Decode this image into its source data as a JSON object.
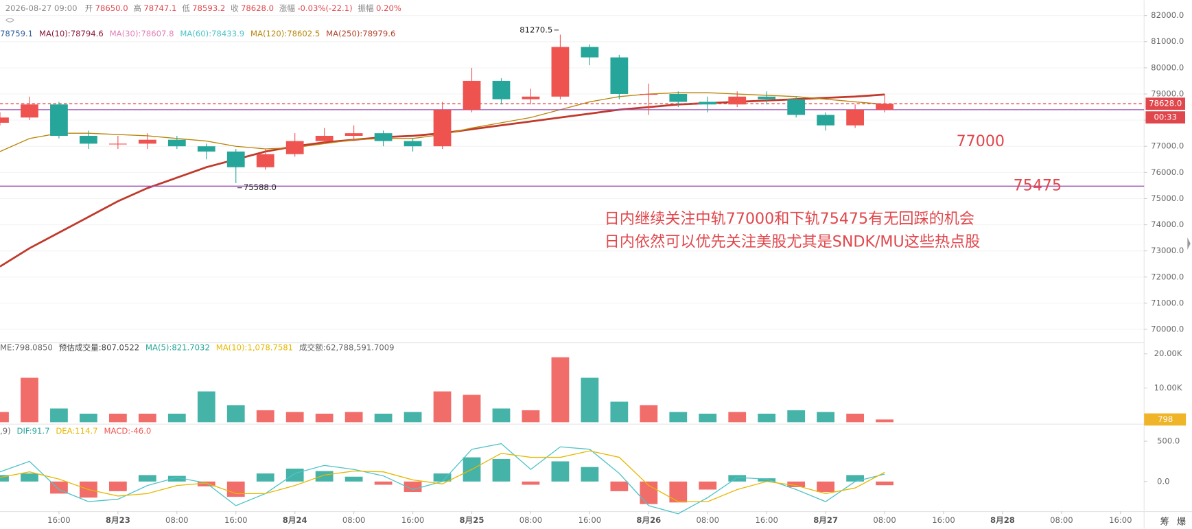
{
  "chart_data": {
    "type": "candlestick",
    "header": [
      {
        "label": "2026-08-27 09:00",
        "value": ""
      },
      {
        "label": "开",
        "value": "78650.0"
      },
      {
        "label": "高",
        "value": "78747.1"
      },
      {
        "label": "低",
        "value": "78593.2"
      },
      {
        "label": "收",
        "value": "78628.0"
      },
      {
        "label": "涨幅",
        "value": "-0.03%(-22.1)"
      },
      {
        "label": "振幅",
        "value": "0.20%"
      }
    ],
    "ma_legend": [
      {
        "text": "78759.1",
        "color": "#2f5f9e"
      },
      {
        "text": "MA(10):78794.6",
        "color": "#8b1a3a"
      },
      {
        "text": "MA(30):78607.8",
        "color": "#e27fb9"
      },
      {
        "text": "MA(60):78433.9",
        "color": "#4fc3c8"
      },
      {
        "text": "MA(120):78602.5",
        "color": "#b8860b"
      },
      {
        "text": "MA(250):78979.6",
        "color": "#b5452b"
      }
    ],
    "x": [
      0,
      1,
      2,
      3,
      4,
      5,
      6,
      7,
      8,
      9,
      10,
      11,
      12,
      13,
      14,
      15,
      16,
      17,
      18,
      19,
      20,
      21,
      22,
      23,
      24,
      25,
      26,
      27,
      28,
      29,
      30
    ],
    "open": [
      77900,
      78100,
      78600,
      77400,
      77100,
      77100,
      77250,
      77000,
      76800,
      76200,
      76700,
      77200,
      77400,
      77500,
      77200,
      77000,
      78400,
      79500,
      78800,
      78900,
      80800,
      80400,
      79000,
      79000,
      78700,
      78600,
      78900,
      78800,
      78200,
      77800,
      78400
    ],
    "high": [
      78300,
      78900,
      78700,
      77600,
      77400,
      77500,
      77400,
      77100,
      76900,
      76900,
      77500,
      77700,
      77800,
      77600,
      77300,
      78700,
      80000,
      79600,
      79200,
      81270.5,
      80900,
      80500,
      79400,
      79100,
      78900,
      79100,
      79100,
      78900,
      78300,
      78600,
      79000
    ],
    "low": [
      77800,
      78000,
      77300,
      76900,
      76900,
      76900,
      76900,
      76500,
      75588,
      76100,
      76600,
      77100,
      77200,
      77000,
      76800,
      76900,
      78300,
      78600,
      78600,
      78800,
      80100,
      78800,
      78200,
      78500,
      78300,
      78500,
      78600,
      78100,
      77600,
      77700,
      78300
    ],
    "close": [
      78100,
      78600,
      77400,
      77100,
      77100,
      77250,
      77000,
      76800,
      76200,
      76700,
      77200,
      77400,
      77500,
      77200,
      77000,
      78400,
      79500,
      78800,
      78900,
      80800,
      80400,
      79000,
      79000,
      78700,
      78600,
      78900,
      78800,
      78200,
      77800,
      78400,
      78628
    ],
    "up_color": "#ef5350",
    "down_color": "#26a69a",
    "series": [
      {
        "name": "MA(250)",
        "color": "#c0392b",
        "width": 2.5,
        "values": [
          72400,
          73100,
          73700,
          74300,
          74900,
          75400,
          75800,
          76200,
          76500,
          76800,
          77000,
          77150,
          77250,
          77350,
          77400,
          77500,
          77650,
          77800,
          77950,
          78100,
          78250,
          78400,
          78500,
          78600,
          78650,
          78700,
          78750,
          78800,
          78850,
          78900,
          78979.6
        ]
      },
      {
        "name": "MA(120)",
        "color": "#b8860b",
        "width": 1.2,
        "values": [
          76800,
          77300,
          77500,
          77500,
          77450,
          77400,
          77300,
          77200,
          77000,
          76900,
          76950,
          77100,
          77250,
          77300,
          77300,
          77450,
          77700,
          77900,
          78100,
          78400,
          78700,
          78900,
          79000,
          79050,
          79050,
          79000,
          78950,
          78900,
          78800,
          78700,
          78602.5
        ]
      }
    ],
    "xlim": [
      0,
      38.8
    ],
    "xticks": [
      {
        "value": 2,
        "label": "16:00"
      },
      {
        "value": 4,
        "label": "8月23"
      },
      {
        "value": 6,
        "label": "08:00"
      },
      {
        "value": 8,
        "label": "16:00"
      },
      {
        "value": 10,
        "label": "8月24"
      },
      {
        "value": 12,
        "label": "08:00"
      },
      {
        "value": 14,
        "label": "16:00"
      },
      {
        "value": 16,
        "label": "8月25"
      },
      {
        "value": 18,
        "label": "08:00"
      },
      {
        "value": 20,
        "label": "16:00"
      },
      {
        "value": 22,
        "label": "8月26"
      },
      {
        "value": 24,
        "label": "08:00"
      },
      {
        "value": 26,
        "label": "16:00"
      },
      {
        "value": 28,
        "label": "8月27"
      },
      {
        "value": 30,
        "label": "08:00"
      },
      {
        "value": 32,
        "label": "16:00"
      },
      {
        "value": 34,
        "label": "8月28"
      },
      {
        "value": 36,
        "label": "08:00"
      },
      {
        "value": 38,
        "label": "16:00"
      }
    ],
    "ylim": [
      69500,
      82580
    ],
    "yticks": [
      {
        "value": 82000,
        "label": "82000.0"
      },
      {
        "value": 81000,
        "label": "81000.0"
      },
      {
        "value": 80000,
        "label": "80000.0"
      },
      {
        "value": 79000,
        "label": "79000.0"
      },
      {
        "value": 78000,
        "label": "78000.0"
      },
      {
        "value": 77000,
        "label": "77000.0"
      },
      {
        "value": 76000,
        "label": "76000.0"
      },
      {
        "value": 75000,
        "label": "75000.0"
      },
      {
        "value": 74000,
        "label": "74000.0"
      },
      {
        "value": 73000,
        "label": "73000.0"
      },
      {
        "value": 72000,
        "label": "72000.0"
      },
      {
        "value": 71000,
        "label": "71000.0"
      },
      {
        "value": 70000,
        "label": "70000.0"
      }
    ],
    "grid": true,
    "extremes": [
      {
        "x": 19,
        "value": 81270.5,
        "label": "81270.5"
      },
      {
        "x": 8,
        "value": 75588,
        "label": "75588.0"
      }
    ],
    "levels": [
      {
        "value": 78628,
        "color": "#e0474c",
        "dashed": true
      },
      {
        "value": 78400,
        "color": "#9b4fb5",
        "dashed": false
      },
      {
        "value": 75475,
        "color": "#9b4fb5",
        "dashed": false
      }
    ],
    "last_price": {
      "value": 78628,
      "label": "78628.0"
    },
    "countdown": "00:33",
    "annotations": [
      "77000",
      "75475",
      "日内继续关注中轨77000和下轨75475有无回踩的机会",
      "日内依然可以优先关注美股尤其是SNDK/MU这些热点股"
    ],
    "volume": {
      "legend": [
        {
          "text": "ME:798.0850",
          "color": "#666"
        },
        {
          "text": "预估成交量:807.0522",
          "color": "#444"
        },
        {
          "text": "MA(5):821.7032",
          "color": "#26a69a"
        },
        {
          "text": "MA(10):1,078.7581",
          "color": "#e6b800"
        },
        {
          "text": "成交额:62,788,591.7009",
          "color": "#666"
        }
      ],
      "values": [
        3000,
        13000,
        4000,
        2500,
        2500,
        2500,
        2500,
        9000,
        5000,
        3500,
        3000,
        2500,
        3000,
        2500,
        3000,
        9000,
        8000,
        4000,
        3500,
        19000,
        13000,
        6000,
        5000,
        3000,
        2500,
        3000,
        2500,
        3500,
        3000,
        2500,
        798
      ],
      "ylim": [
        0,
        22890
      ],
      "yticks": [
        {
          "value": 20000,
          "label": "20.00K"
        },
        {
          "value": 10000,
          "label": "10.00K"
        }
      ],
      "last": {
        "value": 798,
        "label": "798"
      }
    },
    "macd": {
      "legend": [
        {
          "text": ",9)",
          "color": "#666"
        },
        {
          "text": "DIF:91.7",
          "color": "#26a69a"
        },
        {
          "text": "DEA:114.7",
          "color": "#e6b800"
        },
        {
          "text": "MACD:-46.0",
          "color": "#ef5350"
        }
      ],
      "hist": [
        80,
        100,
        -150,
        -200,
        -120,
        80,
        70,
        -60,
        -190,
        100,
        160,
        130,
        60,
        -40,
        -130,
        100,
        300,
        280,
        -40,
        250,
        180,
        -120,
        -280,
        -260,
        -100,
        80,
        40,
        -70,
        -130,
        80,
        -46
      ],
      "dif": [
        120,
        250,
        -100,
        -250,
        -220,
        -50,
        50,
        -20,
        -300,
        -150,
        100,
        200,
        150,
        70,
        -100,
        0,
        400,
        470,
        150,
        430,
        400,
        100,
        -300,
        -400,
        -200,
        50,
        30,
        -100,
        -250,
        0,
        91.7
      ],
      "dea": [
        50,
        120,
        30,
        -100,
        -180,
        -150,
        -50,
        -20,
        -150,
        -150,
        -50,
        80,
        130,
        120,
        20,
        -30,
        150,
        350,
        300,
        300,
        380,
        300,
        -50,
        -250,
        -250,
        -100,
        0,
        -50,
        -150,
        -80,
        114.7
      ],
      "dif_color": "#4fc3c8",
      "dea_color": "#e6b800",
      "ylim": [
        -349,
        689
      ],
      "yticks": [
        {
          "value": 500,
          "label": "500.0"
        },
        {
          "value": 0,
          "label": "0.0"
        }
      ]
    },
    "corner_labels": [
      "筹",
      "爆"
    ]
  }
}
